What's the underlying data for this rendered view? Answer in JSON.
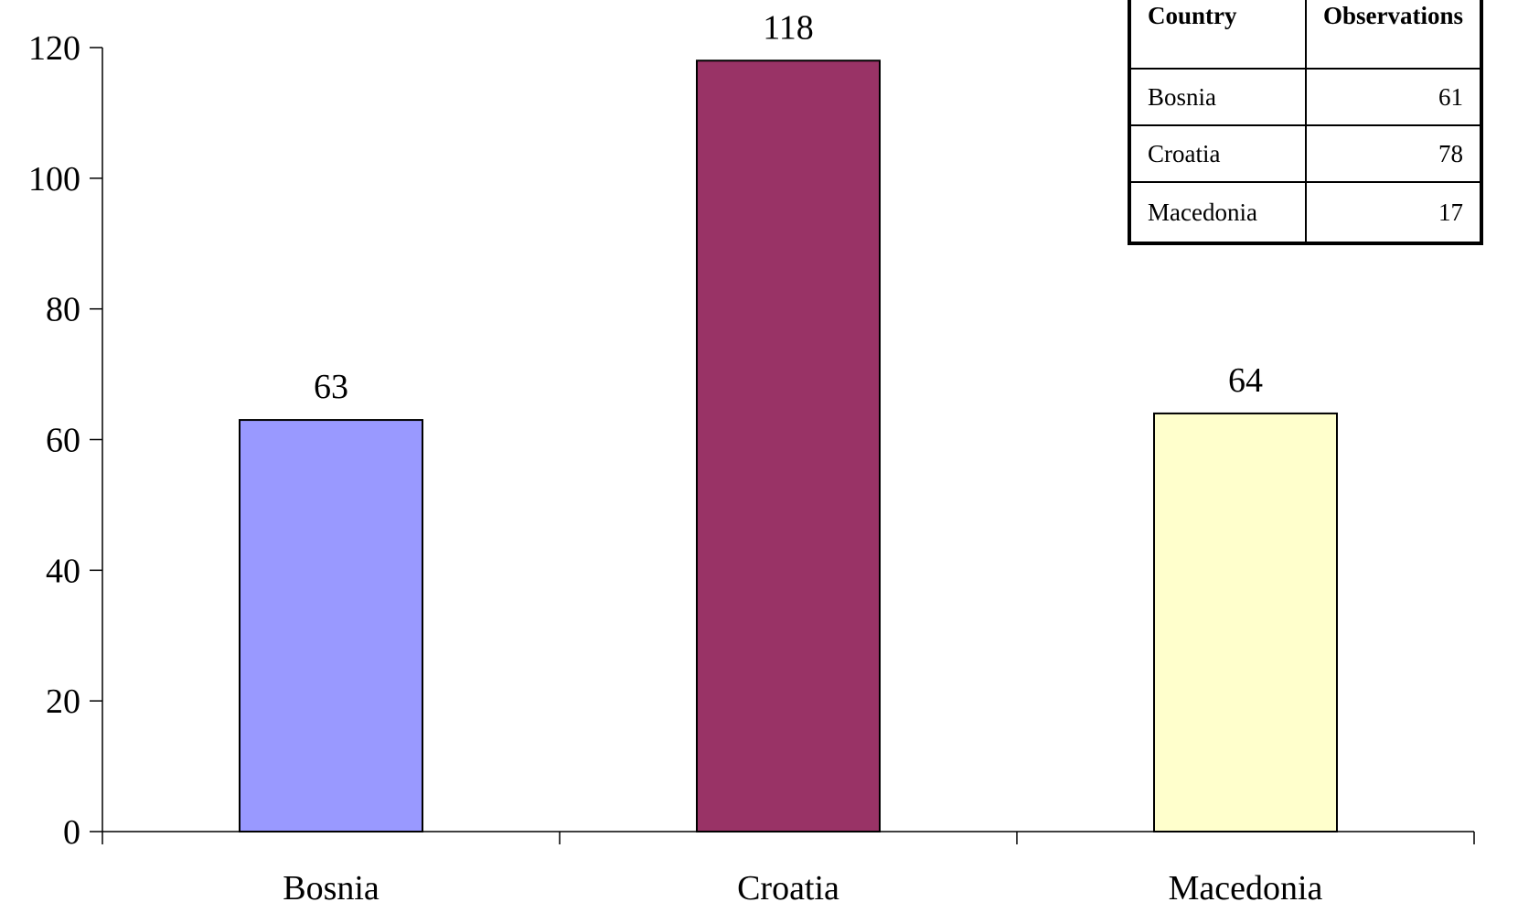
{
  "chart_data": {
    "type": "bar",
    "categories": [
      "Bosnia",
      "Croatia",
      "Macedonia"
    ],
    "values": [
      63,
      118,
      64
    ],
    "colors": [
      "#9999ff",
      "#993366",
      "#ffffcc"
    ],
    "title": "",
    "xlabel": "",
    "ylabel": "",
    "ylim": [
      0,
      120
    ],
    "yticks": [
      0,
      20,
      40,
      60,
      80,
      100,
      120
    ],
    "grid": false,
    "data_labels": true
  },
  "table": {
    "headers": [
      "Country",
      "Observations"
    ],
    "rows": [
      {
        "country": "Bosnia",
        "observations": "61"
      },
      {
        "country": "Croatia",
        "observations": "78"
      },
      {
        "country": "Macedonia",
        "observations": "17"
      }
    ]
  }
}
